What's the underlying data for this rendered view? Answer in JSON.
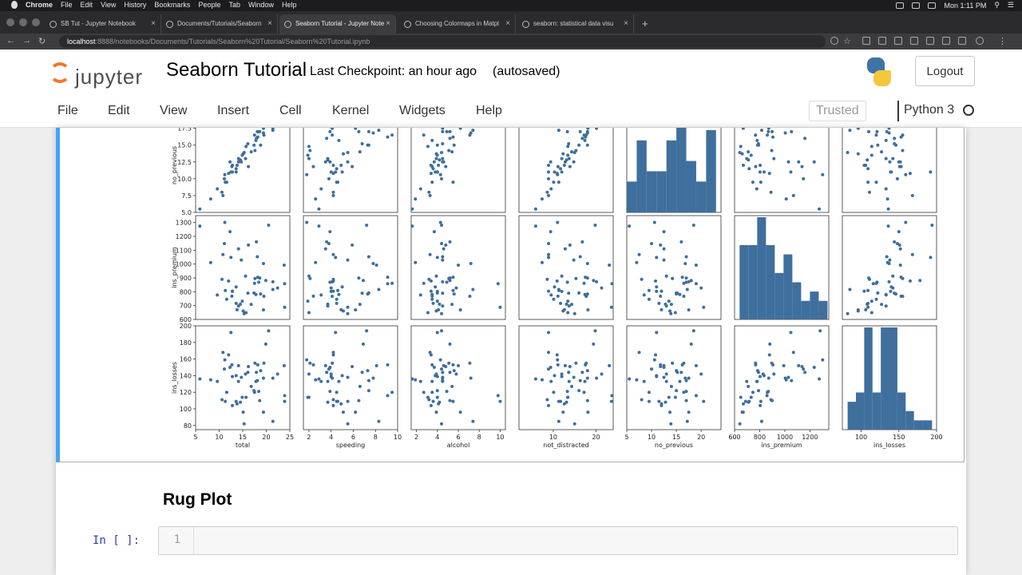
{
  "os_menubar": {
    "app": "Chrome",
    "items": [
      "File",
      "Edit",
      "View",
      "History",
      "Bookmarks",
      "People",
      "Tab",
      "Window",
      "Help"
    ],
    "clock": "Mon 1:11 PM"
  },
  "browser": {
    "tabs": [
      {
        "title": "SB Tut - Jupyter Notebook",
        "active": false
      },
      {
        "title": "Documents/Tutorials/Seaborn",
        "active": false
      },
      {
        "title": "Seaborn Tutorial - Jupyter Note",
        "active": true
      },
      {
        "title": "Choosing Colormaps in Matpl",
        "active": false
      },
      {
        "title": "seaborn: statistical data visu",
        "active": false
      }
    ],
    "url_host": "localhost",
    "url_path": ":8888/notebooks/Documents/Tutorials/Seaborn%20Tutorial/Seaborn%20Tutorial.ipynb"
  },
  "jupyter": {
    "logo_text": "jupyter",
    "notebook_name": "Seaborn Tutorial",
    "checkpoint": "Last Checkpoint: an hour ago",
    "autosaved": "(autosaved)",
    "logout_label": "Logout",
    "menu": [
      "File",
      "Edit",
      "View",
      "Insert",
      "Cell",
      "Kernel",
      "Widgets",
      "Help"
    ],
    "trusted_label": "Trusted",
    "kernel_name": "Python 3"
  },
  "cells": {
    "markdown_heading": "Rug Plot",
    "code_prompt": "In [ ]:",
    "code_line_number": "1"
  },
  "colors": {
    "point": "#3e6e9c",
    "bar": "#3f6f9d",
    "cell_selected_border": "#42a5f5"
  },
  "chart_data": {
    "type": "scatter",
    "layout": "pairplot",
    "columns": [
      "total",
      "speeding",
      "alcohol",
      "not_distracted",
      "no_previous",
      "ins_premium",
      "ins_losses"
    ],
    "visible_rows": [
      "no_previous",
      "ins_premium",
      "ins_losses"
    ],
    "x_ranges": {
      "total": [
        5,
        25
      ],
      "speeding": [
        1.5,
        10
      ],
      "alcohol": [
        1.5,
        10.5
      ],
      "not_distracted": [
        2,
        24
      ],
      "no_previous": [
        5,
        24
      ],
      "ins_premium": [
        600,
        1350
      ],
      "ins_losses": [
        75,
        200
      ]
    },
    "x_ticks": {
      "total": [
        5,
        10,
        15,
        20,
        25
      ],
      "speeding": [
        2,
        4,
        6,
        8,
        10
      ],
      "alcohol": [
        2,
        4,
        6,
        8,
        10
      ],
      "not_distracted": [
        10,
        20
      ],
      "no_previous": [
        5,
        10,
        15,
        20
      ],
      "ins_premium": [
        600,
        800,
        1000,
        1200
      ],
      "ins_losses": [
        100,
        150,
        200
      ]
    },
    "y_ranges": {
      "no_previous": [
        5,
        19
      ],
      "ins_premium": [
        600,
        1350
      ],
      "ins_losses": [
        75,
        200
      ]
    },
    "y_ticks": {
      "no_previous": [
        "5.0",
        "7.5",
        "10.0",
        "12.5",
        "15.0",
        "17.5"
      ],
      "ins_premium": [
        "600",
        "700",
        "800",
        "900",
        "1000",
        "1100",
        "1200",
        "1300"
      ],
      "ins_losses": [
        "80",
        "100",
        "120",
        "140",
        "160",
        "180",
        "200"
      ]
    },
    "records": [
      [
        18.8,
        7.3,
        5.6,
        18.0,
        15.0,
        784,
        146
      ],
      [
        18.1,
        7.4,
        4.5,
        16.3,
        17.0,
        1053,
        134
      ],
      [
        18.6,
        6.5,
        5.2,
        18.0,
        17.0,
        899,
        110
      ],
      [
        22.4,
        4.0,
        5.8,
        21.3,
        20.0,
        827,
        142
      ],
      [
        12.0,
        4.2,
        3.4,
        10.9,
        10.8,
        878,
        165
      ],
      [
        13.6,
        5.0,
        3.8,
        10.3,
        11.0,
        835,
        140
      ],
      [
        10.8,
        4.2,
        3.3,
        8.9,
        7.5,
        1069,
        168
      ],
      [
        16.2,
        5.9,
        4.8,
        13.9,
        11.8,
        1137,
        151
      ],
      [
        5.9,
        2.9,
        1.6,
        5.9,
        5.5,
        1274,
        136
      ],
      [
        17.9,
        3.6,
        5.2,
        16.8,
        16.0,
        1160,
        144
      ],
      [
        15.6,
        2.0,
        3.9,
        12.0,
        13.0,
        913,
        142
      ],
      [
        17.5,
        9.5,
        2.7,
        17.2,
        16.5,
        861,
        120
      ],
      [
        15.3,
        5.5,
        4.4,
        15.0,
        13.9,
        642,
        82
      ],
      [
        12.8,
        4.0,
        4.0,
        12.0,
        11.0,
        803,
        139
      ],
      [
        14.5,
        3.7,
        4.2,
        13.1,
        12.8,
        710,
        108
      ],
      [
        15.7,
        2.0,
        3.1,
        13.4,
        14.8,
        649,
        114
      ],
      [
        17.8,
        4.7,
        3.5,
        17.4,
        15.7,
        780,
        133
      ],
      [
        21.4,
        4.1,
        4.5,
        20.1,
        17.5,
        872,
        137
      ],
      [
        20.5,
        7.2,
        4.4,
        19.8,
        18.5,
        1281,
        194
      ],
      [
        15.1,
        5.1,
        3.9,
        12.3,
        13.7,
        661,
        96
      ],
      [
        12.5,
        4.4,
        4.0,
        8.9,
        11.0,
        1048,
        192
      ],
      [
        8.2,
        2.6,
        1.9,
        7.4,
        7.0,
        1011,
        135
      ],
      [
        14.1,
        3.5,
        4.6,
        12.8,
        12.5,
        1110,
        152
      ],
      [
        9.6,
        3.1,
        2.4,
        9.5,
        8.5,
        777,
        133
      ],
      [
        17.6,
        2.1,
        5.1,
        15.3,
        14.2,
        896,
        155
      ],
      [
        16.1,
        6.8,
        4.5,
        13.6,
        15.2,
        790,
        144
      ],
      [
        21.4,
        8.3,
        7.4,
        11.3,
        17.2,
        816,
        85
      ],
      [
        14.9,
        1.9,
        4.0,
        13.4,
        13.5,
        732,
        114
      ],
      [
        14.7,
        5.5,
        4.5,
        14.8,
        12.5,
        1029,
        138
      ],
      [
        11.6,
        4.5,
        3.5,
        10.1,
        9.5,
        746,
        120
      ],
      [
        11.2,
        1.8,
        4.3,
        11.0,
        10.6,
        1301,
        159
      ],
      [
        18.4,
        3.9,
        4.9,
        13.3,
        17.0,
        869,
        121
      ],
      [
        12.3,
        3.9,
        3.7,
        9.4,
        12.5,
        1234,
        150
      ],
      [
        16.8,
        6.6,
        5.4,
        14.3,
        14.0,
        709,
        127
      ],
      [
        23.9,
        5.5,
        10.0,
        23.6,
        20.5,
        688,
        109
      ],
      [
        14.1,
        3.7,
        4.5,
        13.7,
        13.0,
        697,
        133
      ],
      [
        19.9,
        6.9,
        5.2,
        19.4,
        18.0,
        881,
        178
      ],
      [
        12.8,
        4.2,
        3.4,
        8.9,
        12.0,
        804,
        104
      ],
      [
        18.2,
        9.1,
        5.5,
        17.5,
        16.2,
        905,
        153
      ],
      [
        11.1,
        3.8,
        4.4,
        8.9,
        10.0,
        1148,
        148
      ],
      [
        23.9,
        9.1,
        9.8,
        23.7,
        19.0,
        858,
        116
      ],
      [
        19.4,
        6.2,
        6.2,
        18.1,
        17.5,
        669,
        96
      ],
      [
        19.5,
        4.1,
        7.1,
        17.7,
        16.5,
        767,
        155
      ],
      [
        19.4,
        7.8,
        7.2,
        18.0,
        16.8,
        1004,
        137
      ],
      [
        11.3,
        4.6,
        5.5,
        11.3,
        9.5,
        809,
        109
      ],
      [
        13.6,
        4.5,
        3.6,
        11.7,
        11.5,
        716,
        109
      ],
      [
        12.7,
        2.4,
        3.5,
        11.1,
        11.8,
        768,
        153
      ],
      [
        10.6,
        4.2,
        3.2,
        8.6,
        8.0,
        890,
        111
      ],
      [
        23.8,
        8.1,
        6.0,
        23.1,
        19.0,
        992,
        152
      ],
      [
        13.8,
        4.9,
        4.1,
        12.6,
        12.0,
        670,
        106
      ],
      [
        17.4,
        7.4,
        4.0,
        16.0,
        15.0,
        791,
        122
      ]
    ],
    "diagonal": {
      "no_previous": {
        "bins": [
          5,
          7,
          9,
          11,
          13,
          15,
          17,
          19,
          21,
          23
        ],
        "counts": [
          3,
          7,
          4,
          4,
          7,
          9,
          5,
          3,
          8,
          1
        ]
      },
      "ins_premium": {
        "bins": [
          640,
          710,
          780,
          850,
          920,
          990,
          1060,
          1130,
          1200,
          1270,
          1340
        ],
        "counts": [
          8,
          8,
          11,
          8,
          5,
          7,
          4,
          2,
          3,
          2
        ]
      },
      "ins_losses": {
        "bins": [
          82,
          93,
          104,
          115,
          126,
          137,
          148,
          159,
          170,
          181,
          194
        ],
        "counts": [
          3,
          4,
          11,
          4,
          11,
          11,
          4,
          2,
          1,
          1
        ]
      }
    }
  }
}
